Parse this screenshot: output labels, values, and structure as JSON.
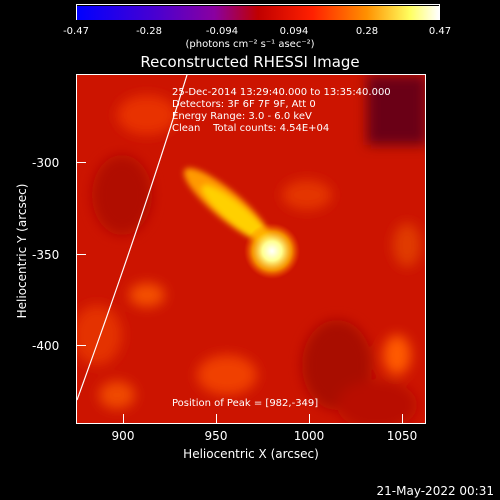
{
  "colorbar": {
    "tick_labels": [
      "-0.47",
      "-0.28",
      "-0.094",
      "0.094",
      "0.28",
      "0.47"
    ],
    "units": "(photons cm⁻² s⁻¹ asec⁻²)"
  },
  "title": "Reconstructed RHESSI Image",
  "info": {
    "time": "25-Dec-2014 13:29:40.000 to 13:35:40.000",
    "detectors": "Detectors: 3F 6F 7F 9F, Att 0",
    "energy": "Energy Range: 3.0 - 6.0 keV",
    "clean": "Clean    Total counts: 4.54E+04",
    "peak": "Position of Peak = [982,-349]"
  },
  "axes": {
    "xlabel": "Heliocentric X (arcsec)",
    "ylabel": "Heliocentric Y (arcsec)",
    "xticks": [
      "900",
      "950",
      "1000",
      "1050"
    ],
    "yticks": [
      "-300",
      "-350",
      "-400"
    ]
  },
  "datestamp": "21-May-2022 00:31",
  "colors": {
    "colormap": [
      "#0000ff",
      "#6a00c0",
      "#9a0030",
      "#ff0000",
      "#ff8000",
      "#ffff80",
      "#ffffff"
    ]
  }
}
